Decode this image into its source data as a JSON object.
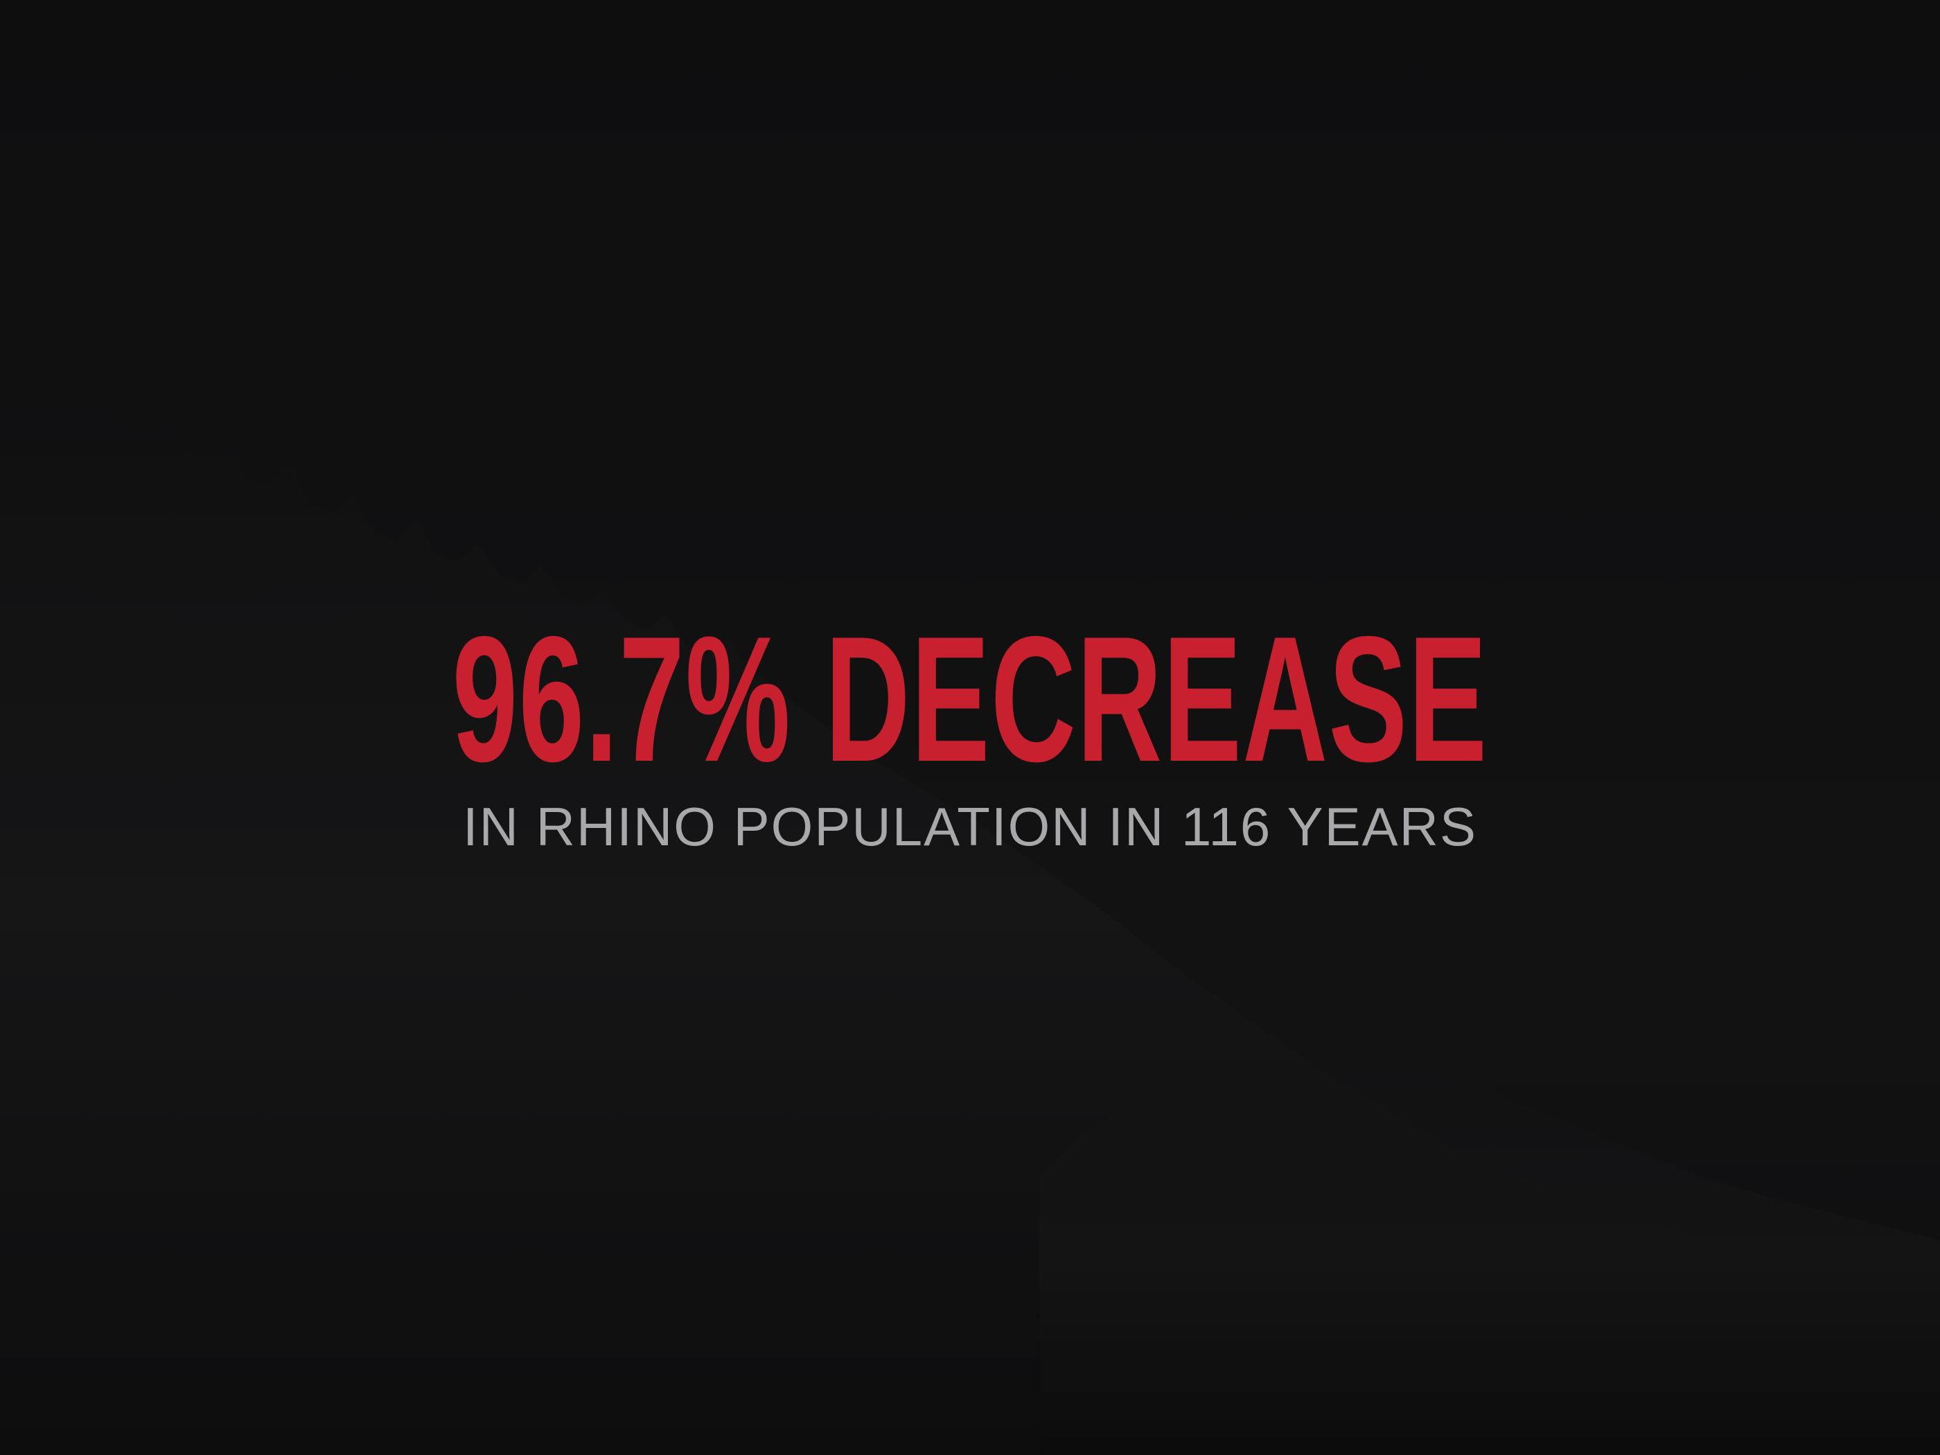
{
  "headline": "96.7% DECREASE",
  "subheadline": "IN RHINO POPULATION IN 116 YEARS",
  "colors": {
    "background": "#0f0f10",
    "headline": "#c8202f",
    "subheadline": "#a8a8aa",
    "forest_silhouette": "#161617"
  }
}
